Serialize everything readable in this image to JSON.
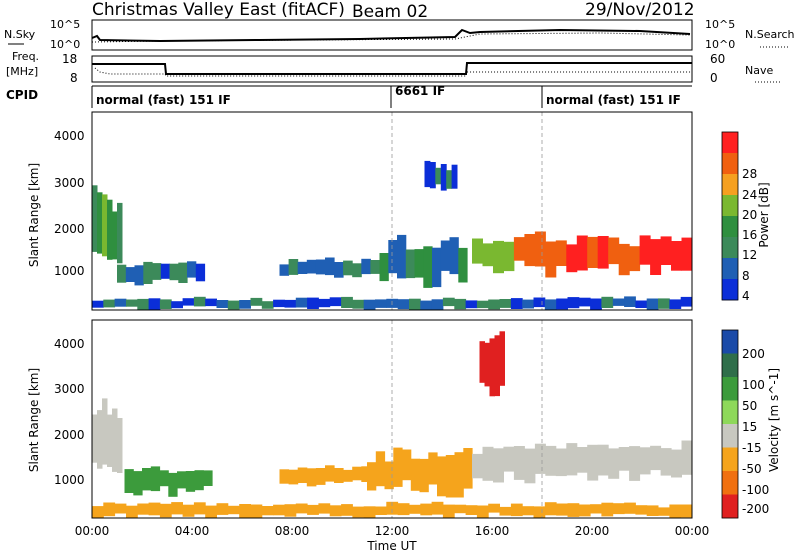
{
  "header": {
    "station": "Christmas Valley East (fitACF)",
    "beam": "Beam 02",
    "date": "29/Nov/2012"
  },
  "noise_panel": {
    "left_label": "N.Sky",
    "right_label": "N.Search",
    "left_ticks": [
      "10^5",
      "10^0"
    ],
    "right_ticks": [
      "10^5",
      "10^0"
    ]
  },
  "freq_panel": {
    "left_label_1": "Freq.",
    "left_label_2": "[MHz]",
    "right_label": "Nave",
    "left_ticks": [
      "18",
      "8"
    ],
    "right_ticks": [
      "60",
      "0"
    ]
  },
  "cpid": {
    "label": "CPID",
    "segments": [
      {
        "start": 0,
        "end": 12,
        "text": "normal (fast) 151 IF"
      },
      {
        "start": 12,
        "end": 18,
        "text": "6661 IF"
      },
      {
        "start": 18,
        "end": 24,
        "text": "normal (fast) 151 IF"
      }
    ]
  },
  "power_panel": {
    "ylabel": "Slant Range [km]",
    "yticks": [
      "4000",
      "3000",
      "2000",
      "1000"
    ],
    "colorbar_label": "Power [dB]",
    "colorbar_ticks": [
      "28",
      "24",
      "20",
      "16",
      "12",
      "8",
      "4"
    ],
    "colors": [
      "#0b2ed8",
      "#1f5fb4",
      "#3c8a5a",
      "#2f8f3f",
      "#7ab830",
      "#f5a020",
      "#f06010",
      "#ff2020"
    ]
  },
  "velocity_panel": {
    "ylabel": "Slant Range [km]",
    "yticks": [
      "4000",
      "3000",
      "2000",
      "1000"
    ],
    "colorbar_label": "Velocity [m s^-1]",
    "colorbar_ticks": [
      "200",
      "100",
      "50",
      "15",
      "-15",
      "-50",
      "-100",
      "-200"
    ],
    "colors": [
      "#1a4aa8",
      "#2f6e4a",
      "#3c9b3c",
      "#8ed85a",
      "#c8c8c0",
      "#f5a41c",
      "#f07010",
      "#e02020"
    ]
  },
  "x_axis": {
    "label": "Time UT",
    "ticks": [
      "00:00",
      "04:00",
      "08:00",
      "12:00",
      "16:00",
      "20:00",
      "00:00"
    ]
  },
  "chart_data": {
    "type": "heatmap",
    "x_range_hours": [
      0,
      24
    ],
    "y_range_km": [
      180,
      4500
    ],
    "power_regions": [
      {
        "t0": 0.0,
        "t1": 1.2,
        "r0": 1200,
        "r1": 2700,
        "level": 4
      },
      {
        "t0": 1.0,
        "t1": 4.5,
        "r0": 750,
        "r1": 1250,
        "level": 2
      },
      {
        "t0": 7.5,
        "t1": 11.5,
        "r0": 900,
        "r1": 1300,
        "level": 2
      },
      {
        "t0": 11.5,
        "t1": 15.0,
        "r0": 750,
        "r1": 1700,
        "level": 3
      },
      {
        "t0": 13.3,
        "t1": 14.6,
        "r0": 2800,
        "r1": 3400,
        "level": 2
      },
      {
        "t0": 15.2,
        "t1": 24.0,
        "r0": 1000,
        "r1": 1800,
        "level": 7
      },
      {
        "t0": 0.0,
        "t1": 24.0,
        "r0": 200,
        "r1": 450,
        "level": 2
      }
    ],
    "velocity_regions": [
      {
        "t0": 0.0,
        "t1": 1.2,
        "r0": 1200,
        "r1": 2700,
        "vel": 0
      },
      {
        "t0": 1.3,
        "t1": 4.8,
        "r0": 700,
        "r1": 1250,
        "vel": 40
      },
      {
        "t0": 7.5,
        "t1": 11.5,
        "r0": 900,
        "r1": 1300,
        "vel": -40
      },
      {
        "t0": 11.0,
        "t1": 15.2,
        "r0": 700,
        "r1": 1700,
        "vel": -40
      },
      {
        "t0": 15.2,
        "t1": 24.0,
        "r0": 1000,
        "r1": 1800,
        "vel": 0
      },
      {
        "t0": 15.5,
        "t1": 16.5,
        "r0": 2800,
        "r1": 4200,
        "vel": -200
      },
      {
        "t0": 0.0,
        "t1": 24.0,
        "r0": 200,
        "r1": 500,
        "vel": -40
      }
    ]
  }
}
